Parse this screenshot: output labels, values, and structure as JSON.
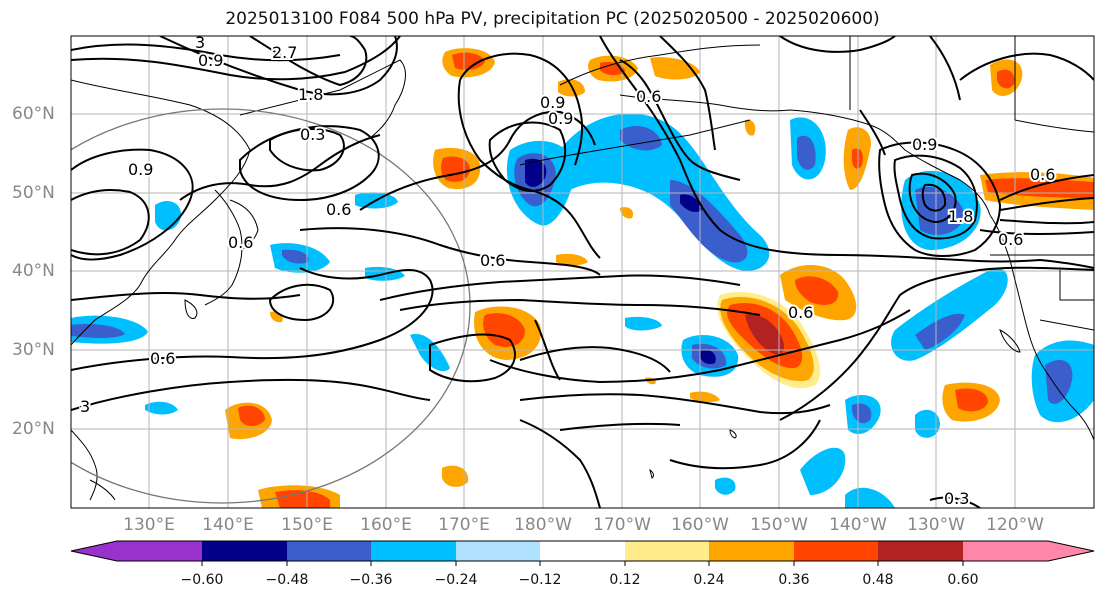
{
  "title": "2025013100 F084 500 hPa PV, precipitation PC (2025020500 - 2025020600)",
  "lat_labels": [
    "60°N",
    "50°N",
    "40°N",
    "30°N",
    "20°N"
  ],
  "lon_labels": [
    "130°E",
    "140°E",
    "150°E",
    "160°E",
    "170°E",
    "180°W",
    "170°W",
    "160°W",
    "150°W",
    "140°W",
    "130°W",
    "120°W"
  ],
  "colorbar": {
    "ticks": [
      "−0.60",
      "−0.48",
      "−0.36",
      "−0.24",
      "−0.12",
      "0.12",
      "0.24",
      "0.36",
      "0.48",
      "0.60"
    ],
    "colors": [
      "#9932cc",
      "#00008b",
      "#3a5fcd",
      "#00bfff",
      "#b0e2ff",
      "#ffffff",
      "#ffec8b",
      "#ffa500",
      "#ff4500",
      "#b22222",
      "#ff88aa"
    ]
  },
  "contour_labels": [
    {
      "text": "3"
    },
    {
      "text": "2.7"
    },
    {
      "text": "0.9"
    },
    {
      "text": "1.8"
    },
    {
      "text": "0.3"
    },
    {
      "text": "0.9"
    },
    {
      "text": "0.6"
    },
    {
      "text": "0.9"
    },
    {
      "text": "0.6"
    },
    {
      "text": "0.6"
    },
    {
      "text": "3"
    },
    {
      "text": "0.6"
    },
    {
      "text": "0.9"
    },
    {
      "text": "0.6"
    },
    {
      "text": "1.8"
    },
    {
      "text": "0.6"
    },
    {
      "text": "0.3"
    },
    {
      "text": "0.9"
    },
    {
      "text": "0.6"
    },
    {
      "text": "0.6"
    }
  ]
}
